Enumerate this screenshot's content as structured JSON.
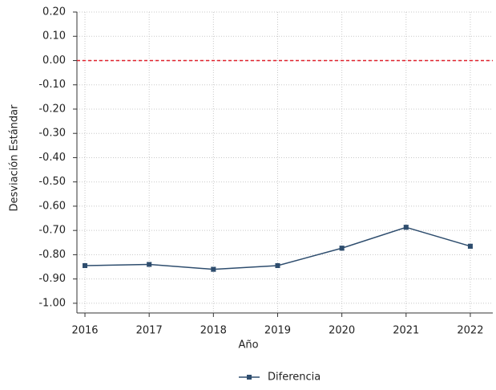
{
  "chart_data": {
    "type": "line",
    "x_label": "Año",
    "y_label": "Desviación Estándar",
    "x": [
      2016,
      2017,
      2018,
      2019,
      2020,
      2021,
      2022
    ],
    "series": [
      {
        "name": "Diferencia",
        "color": "#2e4d6e",
        "values": [
          -0.845,
          -0.84,
          -0.86,
          -0.845,
          -0.773,
          -0.687,
          -0.765
        ],
        "errors": [
          0.008,
          0.008,
          0.008,
          0.008,
          0.008,
          0.008,
          0.008
        ]
      }
    ],
    "xlim": [
      2015.875,
      2022.35
    ],
    "xticks": [
      2016,
      2017,
      2018,
      2019,
      2020,
      2021,
      2022
    ],
    "ylim": [
      -1.04,
      0.2
    ],
    "yticks": [
      {
        "value": 0.2,
        "label": "0.20"
      },
      {
        "value": 0.1,
        "label": "0.10"
      },
      {
        "value": 0,
        "label": "0.00"
      },
      {
        "value": -0.1,
        "label": "-0.10"
      },
      {
        "value": -0.2,
        "label": "-0.20"
      },
      {
        "value": -0.3,
        "label": "-0.30"
      },
      {
        "value": -0.4,
        "label": "-0.40"
      },
      {
        "value": -0.5,
        "label": "-0.50"
      },
      {
        "value": -0.6,
        "label": "-0.60"
      },
      {
        "value": -0.7,
        "label": "-0.70"
      },
      {
        "value": -0.8,
        "label": "-0.80"
      },
      {
        "value": -0.9,
        "label": "-0.90"
      },
      {
        "value": -1,
        "label": "-1.00"
      }
    ],
    "reference_line": {
      "value": 0,
      "color": "#e0202a"
    },
    "grid": true,
    "legend": "bottom"
  }
}
